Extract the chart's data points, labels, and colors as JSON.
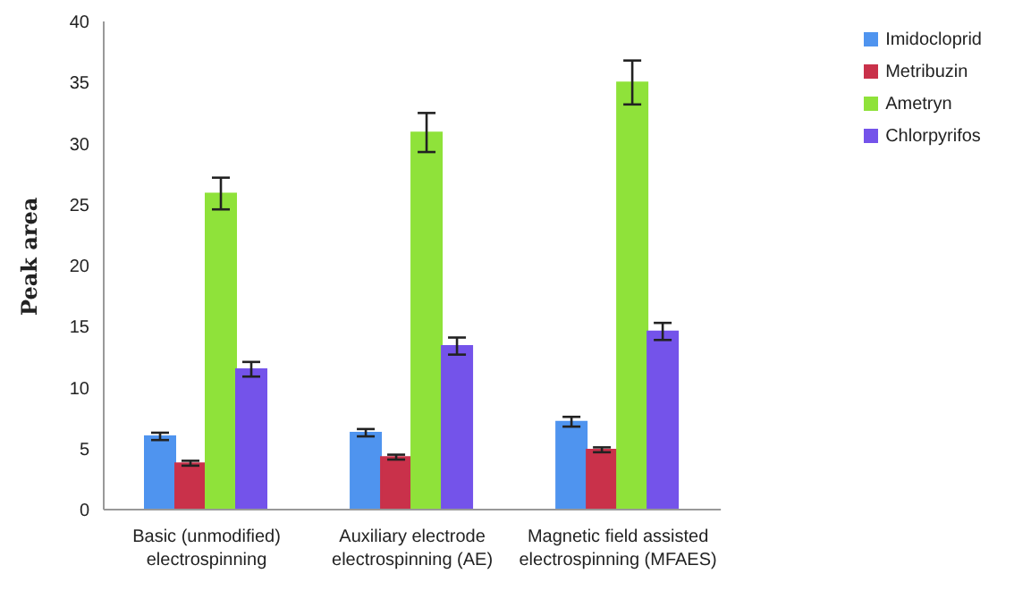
{
  "chart_data": {
    "type": "bar",
    "ylabel": "Peak area",
    "categories": [
      "Basic (unmodified) electrospinning",
      "Auxiliary electrode electrospinning (AE)",
      "Magnetic field assisted electrospinning (MFAES)"
    ],
    "series": [
      {
        "name": "Imidocloprid",
        "color": "#4f94ef",
        "values": [
          6.0,
          6.3,
          7.2
        ],
        "errors": [
          0.3,
          0.3,
          0.4
        ]
      },
      {
        "name": "Metribuzin",
        "color": "#c9314a",
        "values": [
          3.8,
          4.3,
          4.9
        ],
        "errors": [
          0.2,
          0.2,
          0.2
        ]
      },
      {
        "name": "Ametryn",
        "color": "#8fe23a",
        "values": [
          25.9,
          30.9,
          35.0
        ],
        "errors": [
          1.3,
          1.6,
          1.8
        ]
      },
      {
        "name": "Chlorpyrifos",
        "color": "#7453ea",
        "values": [
          11.5,
          13.4,
          14.6
        ],
        "errors": [
          0.6,
          0.7,
          0.7
        ]
      }
    ],
    "ylim": [
      0,
      40
    ],
    "yticks": [
      0,
      5,
      10,
      15,
      20,
      25,
      30,
      35,
      40
    ],
    "grid": false,
    "legend": "top right"
  }
}
